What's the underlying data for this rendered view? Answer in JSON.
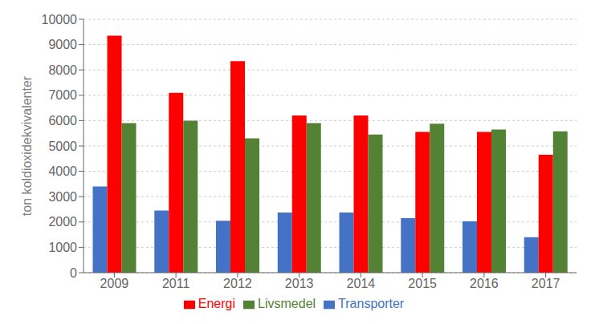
{
  "chart_data": {
    "type": "bar",
    "ylabel": "ton koldioxidekvivalenter",
    "categories": [
      "2009",
      "2011",
      "2012",
      "2013",
      "2014",
      "2015",
      "2016",
      "2017"
    ],
    "series": [
      {
        "name": "Transporter",
        "color": "#4472C4",
        "values": [
          3400,
          2450,
          2050,
          2375,
          2375,
          2150,
          2025,
          1400
        ]
      },
      {
        "name": "Energi",
        "color": "#FF0000",
        "values": [
          9350,
          7100,
          8350,
          6200,
          6200,
          5550,
          5550,
          4650
        ]
      },
      {
        "name": "Livsmedel",
        "color": "#548235",
        "values": [
          5900,
          6000,
          5300,
          5900,
          5450,
          5875,
          5650,
          5575
        ]
      }
    ],
    "ylim": [
      0,
      10000
    ],
    "yticks": [
      0,
      1000,
      2000,
      3000,
      4000,
      5000,
      6000,
      7000,
      8000,
      9000,
      10000
    ],
    "grid": true,
    "legend": "bottom"
  }
}
